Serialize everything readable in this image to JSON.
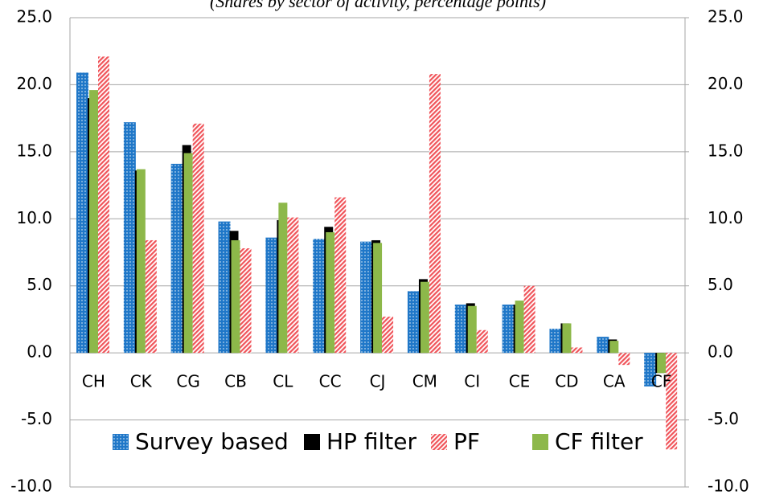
{
  "chart_data": {
    "type": "bar",
    "title": "(Shares by sector of activity, percentage points)",
    "categories": [
      "CH",
      "CK",
      "CG",
      "CB",
      "CL",
      "CC",
      "CJ",
      "CM",
      "CI",
      "CE",
      "CD",
      "CA",
      "CF"
    ],
    "series": [
      {
        "name": "Survey based",
        "color": "#1f77c8",
        "pattern": "dots",
        "values": [
          20.9,
          17.2,
          14.1,
          9.8,
          8.6,
          8.5,
          8.3,
          4.6,
          3.6,
          3.6,
          1.8,
          1.2,
          -2.5
        ]
      },
      {
        "name": "HP filter",
        "color": "#000000",
        "pattern": "solid",
        "values": [
          19.0,
          13.6,
          15.5,
          9.1,
          9.9,
          9.4,
          8.4,
          5.5,
          3.7,
          3.6,
          2.2,
          1.0,
          -1.5
        ]
      },
      {
        "name": "PF",
        "color": "#f0545a",
        "pattern": "hatch",
        "values": [
          22.1,
          8.4,
          17.1,
          7.8,
          10.1,
          11.6,
          2.7,
          20.8,
          1.7,
          5.0,
          0.4,
          -0.9,
          -7.2
        ]
      },
      {
        "name": "CF filter",
        "color": "#8db84a",
        "pattern": "solid",
        "values": [
          19.6,
          13.7,
          14.9,
          8.4,
          11.2,
          9.0,
          8.2,
          5.3,
          3.5,
          3.9,
          2.2,
          0.9,
          -1.5
        ]
      }
    ],
    "ylim": [
      -10,
      25
    ],
    "yticks": [
      {
        "value": -10,
        "label": "-10.0"
      },
      {
        "value": -5,
        "label": "-5.0"
      },
      {
        "value": 0,
        "label": "0.0"
      },
      {
        "value": 5,
        "label": "5.0"
      },
      {
        "value": 10,
        "label": "10.0"
      },
      {
        "value": 15,
        "label": "15.0"
      },
      {
        "value": 20,
        "label": "20.0"
      },
      {
        "value": 25,
        "label": "25.0"
      }
    ],
    "y2lim": [
      -10,
      25
    ],
    "y2ticks": [
      {
        "value": -10,
        "label": "-10.0"
      },
      {
        "value": -5,
        "label": "-5.0"
      },
      {
        "value": 0,
        "label": "0.0"
      },
      {
        "value": 5,
        "label": "5.0"
      },
      {
        "value": 10,
        "label": "10.0"
      },
      {
        "value": 15,
        "label": "15.0"
      },
      {
        "value": 20,
        "label": "20.0"
      },
      {
        "value": 25,
        "label": "25.0"
      }
    ],
    "grid": true,
    "legend": "bottom"
  }
}
